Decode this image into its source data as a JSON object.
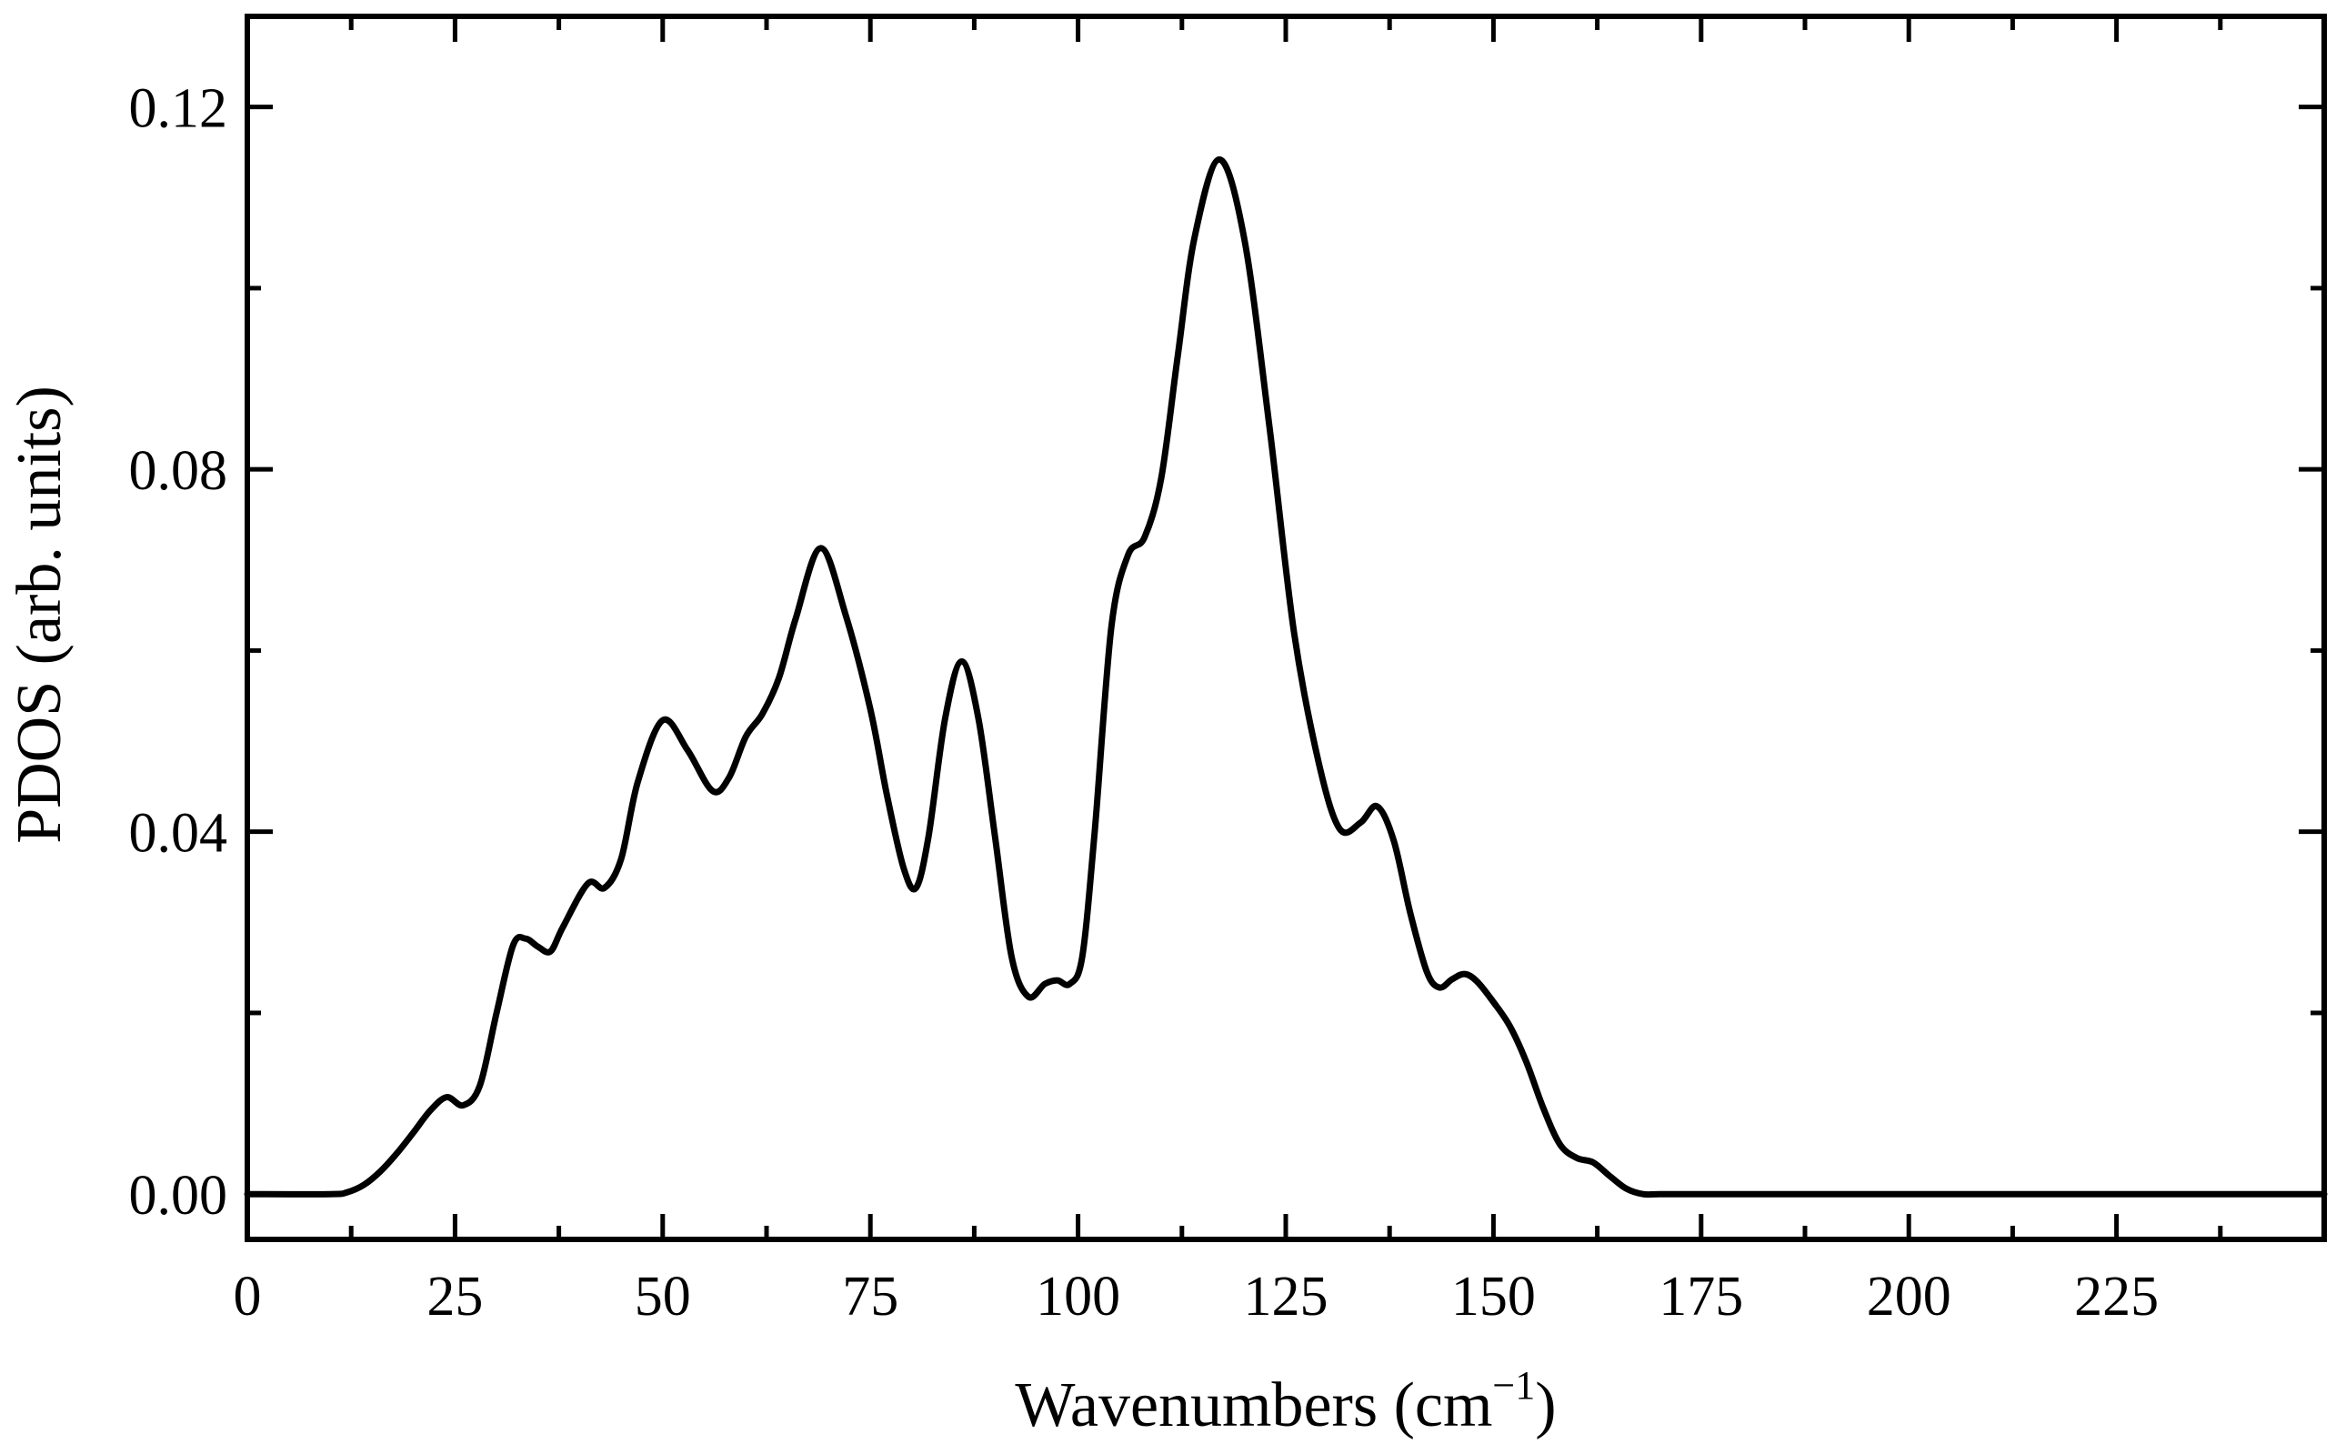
{
  "chart_data": {
    "type": "line",
    "xlabel": "Wavenumbers (cm",
    "xlabel_sup": "−1",
    "xlabel_end": ")",
    "ylabel": "PDOS (arb. units)",
    "xlim": [
      0,
      250
    ],
    "ylim": [
      -0.005,
      0.13
    ],
    "xticks": [
      0,
      25,
      50,
      75,
      100,
      125,
      150,
      175,
      200,
      225
    ],
    "xtick_labels": [
      "0",
      "25",
      "50",
      "75",
      "100",
      "125",
      "150",
      "175",
      "200",
      "225"
    ],
    "xminor": [
      12.5,
      37.5,
      62.5,
      87.5,
      112.5,
      137.5,
      162.5,
      187.5,
      212.5,
      237.5
    ],
    "yticks": [
      0,
      0.04,
      0.08,
      0.12
    ],
    "ytick_labels": [
      "0.00",
      "0.04",
      "0.08",
      "0.12"
    ],
    "yminor": [
      0.02,
      0.06,
      0.1
    ],
    "grid": false,
    "line_color": "#000000",
    "series": [
      {
        "x": [
          0,
          10,
          12,
          14,
          16,
          18,
          20,
          22,
          24,
          26,
          28,
          30,
          32,
          33.5,
          35,
          36.5,
          38,
          41,
          43,
          45,
          47,
          50,
          53,
          56,
          58,
          60,
          62,
          64,
          66,
          69,
          72,
          75,
          77,
          79,
          80.5,
          82,
          84,
          86,
          88,
          90,
          92,
          94,
          96,
          97.5,
          99,
          100.5,
          102,
          104,
          106,
          108,
          110,
          112,
          114,
          117,
          120,
          123,
          126,
          129,
          131.5,
          134,
          136,
          138,
          140,
          142,
          143.5,
          145,
          146.5,
          148,
          150,
          152,
          154,
          156,
          158,
          160,
          162,
          164,
          166,
          168,
          170,
          175,
          200,
          225,
          250
        ],
        "y": [
          0,
          0,
          0.0002,
          0.001,
          0.0025,
          0.0045,
          0.0068,
          0.0092,
          0.0107,
          0.0098,
          0.012,
          0.02,
          0.0275,
          0.0282,
          0.0273,
          0.0268,
          0.0295,
          0.0343,
          0.0338,
          0.037,
          0.0455,
          0.0523,
          0.049,
          0.0445,
          0.046,
          0.0505,
          0.053,
          0.057,
          0.0635,
          0.0713,
          0.064,
          0.0535,
          0.044,
          0.036,
          0.0338,
          0.0395,
          0.0525,
          0.0588,
          0.0525,
          0.0395,
          0.0262,
          0.0218,
          0.0232,
          0.0236,
          0.0232,
          0.0262,
          0.04,
          0.0625,
          0.0705,
          0.0725,
          0.079,
          0.0925,
          0.1055,
          0.1142,
          0.1055,
          0.085,
          0.062,
          0.0475,
          0.0403,
          0.041,
          0.0428,
          0.039,
          0.031,
          0.0245,
          0.0228,
          0.0237,
          0.0243,
          0.0235,
          0.0212,
          0.0185,
          0.0145,
          0.0095,
          0.0055,
          0.004,
          0.0035,
          0.002,
          0.0006,
          0,
          0,
          0,
          0,
          0,
          0
        ]
      }
    ]
  }
}
